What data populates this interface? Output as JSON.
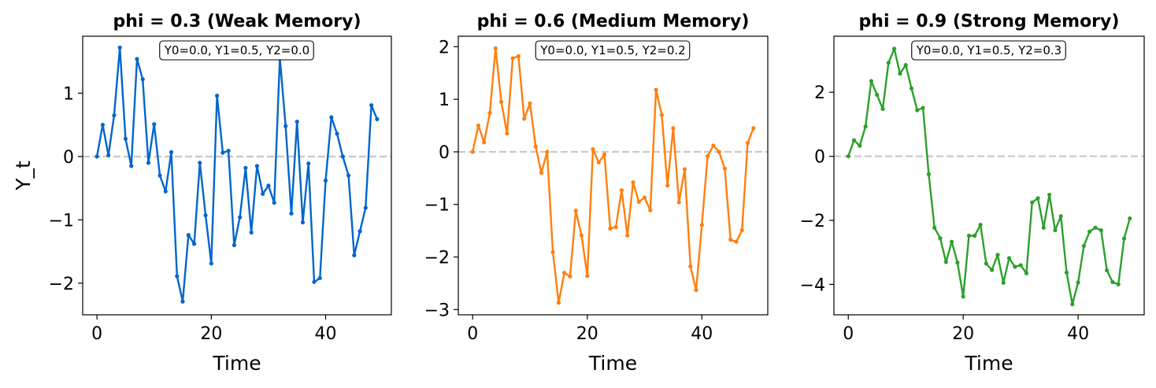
{
  "chart_data": [
    {
      "type": "line",
      "title": "phi = 0.3 (Weak Memory)",
      "xlabel": "Time",
      "ylabel": "Y_t",
      "annotation": "Y0=0.0, Y1=0.5, Y2=0.0",
      "color": "#0066cc",
      "xlim": [
        -2.5,
        51.5
      ],
      "ylim": [
        -2.5,
        1.9
      ],
      "xticks": [
        0,
        20,
        40
      ],
      "xtick_labels": [
        "0",
        "20",
        "40"
      ],
      "yticks": [
        1,
        0,
        -1,
        -2
      ],
      "ytick_labels": [
        "1",
        "0",
        "−1",
        "−2"
      ],
      "values": [
        0.0,
        0.5,
        0.02,
        0.65,
        1.72,
        0.28,
        -0.15,
        1.54,
        1.22,
        -0.1,
        0.51,
        -0.3,
        -0.55,
        0.07,
        -1.89,
        -2.29,
        -1.24,
        -1.38,
        -0.1,
        -0.93,
        -1.69,
        0.96,
        0.06,
        0.09,
        -1.4,
        -0.96,
        -0.18,
        -1.2,
        -0.15,
        -0.59,
        -0.46,
        -0.73,
        1.56,
        0.48,
        -0.9,
        0.55,
        -1.04,
        -0.11,
        -1.98,
        -1.92,
        -0.38,
        0.62,
        0.36,
        0.0,
        -0.3,
        -1.56,
        -1.18,
        -0.81,
        0.81,
        0.59
      ]
    },
    {
      "type": "line",
      "title": "phi = 0.6 (Medium Memory)",
      "xlabel": "Time",
      "ylabel": "",
      "annotation": "Y0=0.0, Y1=0.5, Y2=0.2",
      "color": "#ff7f0e",
      "xlim": [
        -2.5,
        51.5
      ],
      "ylim": [
        -3.1,
        2.2
      ],
      "xticks": [
        0,
        20,
        40
      ],
      "xtick_labels": [
        "0",
        "20",
        "40"
      ],
      "yticks": [
        2,
        1,
        0,
        -1,
        -2,
        -3
      ],
      "ytick_labels": [
        "2",
        "1",
        "0",
        "−1",
        "−2",
        "−3"
      ],
      "values": [
        0.0,
        0.5,
        0.18,
        0.74,
        1.97,
        0.95,
        0.35,
        1.78,
        1.82,
        0.63,
        0.92,
        0.1,
        -0.4,
        0.0,
        -1.91,
        -2.87,
        -2.3,
        -2.37,
        -1.12,
        -1.59,
        -2.36,
        0.05,
        -0.2,
        -0.05,
        -1.46,
        -1.43,
        -0.73,
        -1.59,
        -0.58,
        -0.95,
        -0.87,
        -1.11,
        1.18,
        0.7,
        -0.64,
        0.45,
        -0.96,
        -0.33,
        -2.18,
        -2.63,
        -1.39,
        -0.08,
        0.12,
        0.0,
        -0.32,
        -1.67,
        -1.71,
        -1.49,
        0.17,
        0.45
      ]
    },
    {
      "type": "line",
      "title": "phi = 0.9 (Strong Memory)",
      "xlabel": "Time",
      "ylabel": "",
      "annotation": "Y0=0.0, Y1=0.5, Y2=0.3",
      "color": "#2ca02c",
      "xlim": [
        -2.5,
        51.5
      ],
      "ylim": [
        -4.95,
        3.75
      ],
      "xticks": [
        0,
        20,
        40
      ],
      "xtick_labels": [
        "0",
        "20",
        "40"
      ],
      "yticks": [
        2,
        0,
        -2,
        -4
      ],
      "ytick_labels": [
        "2",
        "0",
        "−2",
        "−4"
      ],
      "values": [
        0.0,
        0.5,
        0.33,
        0.93,
        2.35,
        1.92,
        1.48,
        2.92,
        3.36,
        2.58,
        2.85,
        2.12,
        1.44,
        1.51,
        -0.56,
        -2.23,
        -2.56,
        -3.3,
        -2.67,
        -3.32,
        -4.38,
        -2.48,
        -2.48,
        -2.14,
        -3.35,
        -3.55,
        -3.08,
        -3.95,
        -3.18,
        -3.45,
        -3.4,
        -3.65,
        -1.44,
        -1.31,
        -2.23,
        -1.2,
        -2.31,
        -1.87,
        -3.63,
        -4.62,
        -3.94,
        -2.8,
        -2.35,
        -2.23,
        -2.31,
        -3.56,
        -3.93,
        -4.0,
        -2.57,
        -1.94
      ]
    }
  ]
}
